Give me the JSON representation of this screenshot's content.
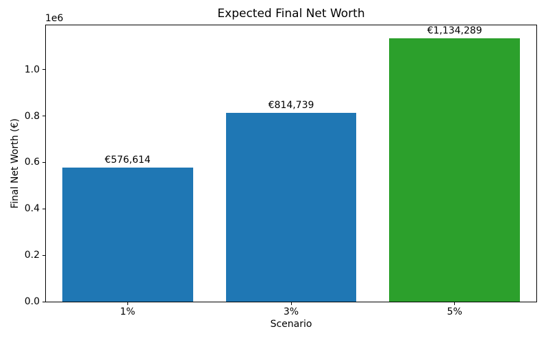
{
  "chart_data": {
    "type": "bar",
    "title": "Expected Final Net Worth",
    "xlabel": "Scenario",
    "ylabel": "Final Net Worth (€)",
    "categories": [
      "1%",
      "3%",
      "5%"
    ],
    "values": [
      576614,
      814739,
      1134289
    ],
    "bar_value_labels": [
      "€576,614",
      "€814,739",
      "€1,134,289"
    ],
    "bar_colors": [
      "#1f77b4",
      "#1f77b4",
      "#2ca02c"
    ],
    "bar_width_fraction": 0.8,
    "ylim": [
      0,
      1191003
    ],
    "yticks": [
      0,
      200000,
      400000,
      600000,
      800000,
      1000000
    ],
    "ytick_labels": [
      "0.0",
      "0.2",
      "0.4",
      "0.6",
      "0.8",
      "1.0"
    ],
    "y_offset_text": "1e6",
    "grid": false,
    "legend": null,
    "frame_color": "#000000"
  }
}
